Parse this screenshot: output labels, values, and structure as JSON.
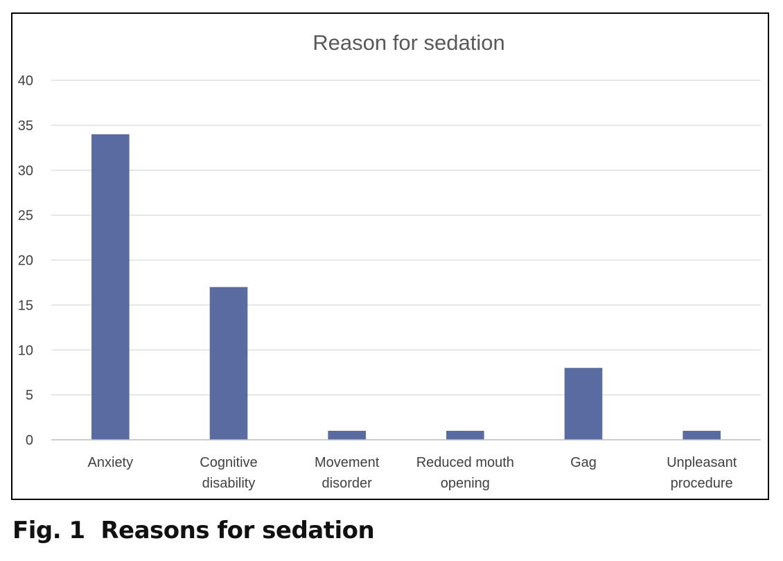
{
  "chart_data": {
    "type": "bar",
    "title": "Reason for sedation",
    "categories": [
      [
        "Anxiety"
      ],
      [
        "Cognitive",
        "disability"
      ],
      [
        "Movement",
        "disorder"
      ],
      [
        "Reduced mouth",
        "opening"
      ],
      [
        "Gag"
      ],
      [
        "Unpleasant",
        "procedure"
      ]
    ],
    "values": [
      34,
      17,
      1,
      1,
      8,
      1
    ],
    "ylim": [
      0,
      40
    ],
    "yticks": [
      0,
      5,
      10,
      15,
      20,
      25,
      30,
      35,
      40
    ],
    "grid": true,
    "xlabel": "",
    "ylabel": "",
    "bar_color": "#5a6ba2",
    "grid_color": "#d9d9d9",
    "text_color": "#404040"
  },
  "caption": {
    "label": "Fig. 1",
    "text": "Reasons for sedation"
  }
}
